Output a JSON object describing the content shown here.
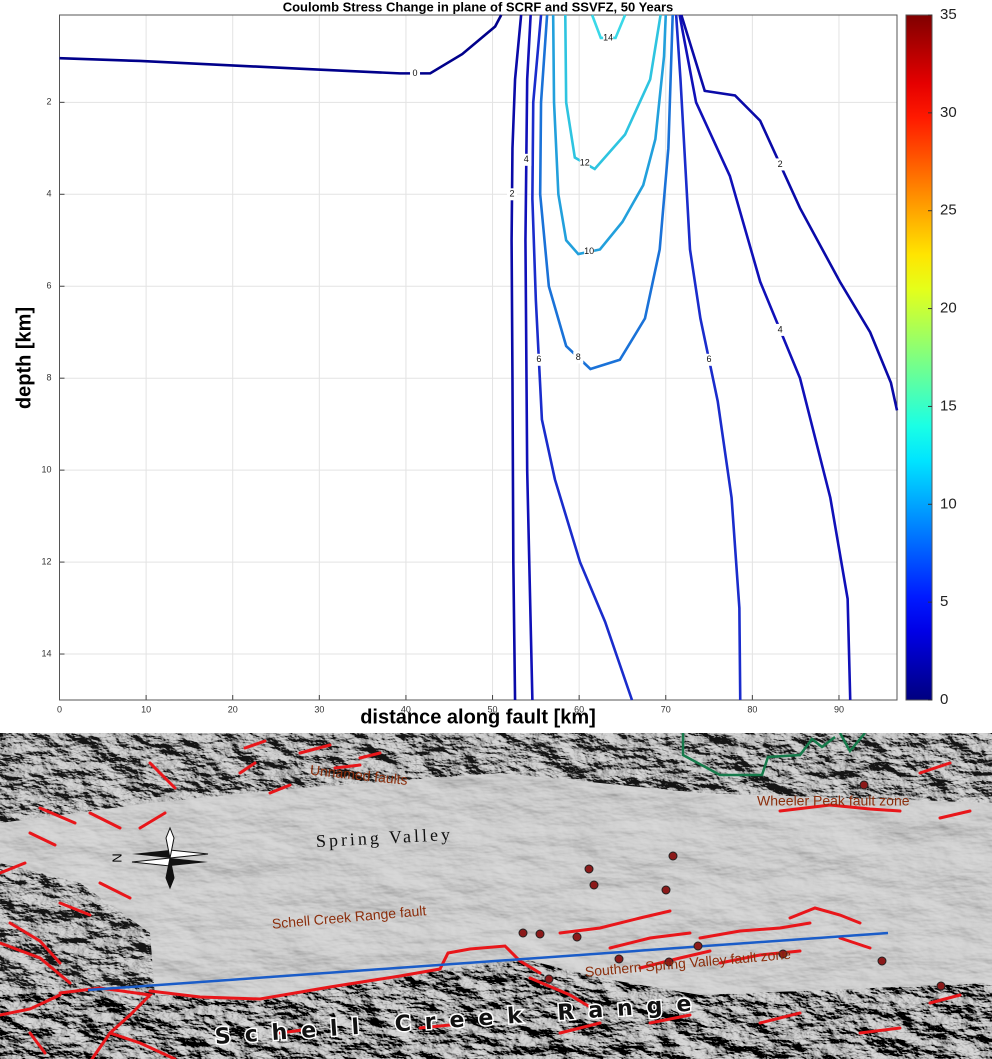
{
  "chart_data": {
    "type": "contour",
    "title": "Coulomb Stress Change in plane of SCRF and SSVFZ, 50 Years",
    "xlabel": "distance along fault [km]",
    "ylabel": "depth [km]",
    "xlim": [
      0,
      96.7
    ],
    "ylim": [
      0.1,
      15
    ],
    "y_inverted": true,
    "xticks": [
      0,
      10,
      20,
      30,
      40,
      50,
      60,
      70,
      80,
      90
    ],
    "yticks": [
      2,
      4,
      6,
      8,
      10,
      12,
      14
    ],
    "grid": true,
    "colorbar": {
      "clim": [
        0,
        35
      ],
      "ticks": [
        0,
        5,
        10,
        15,
        20,
        25,
        30,
        35
      ],
      "colormap": "jet"
    },
    "contours": [
      {
        "level": 0,
        "color": "#00008b",
        "x": [
          0,
          9.3,
          28,
          39.3,
          42.8,
          46.5,
          50.3,
          51
        ],
        "y": [
          1.04,
          1.1,
          1.27,
          1.37,
          1.37,
          0.95,
          0.35,
          0.1
        ]
      },
      {
        "level": 2,
        "color": "#0a0aa8",
        "x": [
          53.3,
          52.6,
          52.3,
          52.2,
          52.3,
          52.4,
          52.6
        ],
        "y": [
          0.1,
          1.5,
          3,
          5,
          8,
          12,
          15
        ]
      },
      {
        "level": 4,
        "color": "#1010b8",
        "x": [
          54.4,
          54,
          53.8,
          54,
          54.6
        ],
        "y": [
          0.1,
          1.5,
          5,
          10,
          15
        ]
      },
      {
        "level": 6,
        "color": "#1a2ccc",
        "x": [
          55.6,
          54.7,
          54.6,
          55,
          55.7,
          57.2,
          60.1,
          63,
          66.1
        ],
        "y": [
          0.1,
          2,
          4.1,
          6.3,
          8.9,
          10.2,
          12,
          13.3,
          15
        ]
      },
      {
        "level": 8,
        "color": "#1a72d8",
        "x": [
          56.3,
          55.6,
          55.5,
          56.5,
          58.5,
          61.3,
          64.7,
          67.6,
          69.3,
          70.3,
          70.8
        ],
        "y": [
          0.1,
          2,
          4,
          6,
          7.3,
          7.8,
          7.6,
          6.7,
          5.2,
          3,
          0.1
        ]
      },
      {
        "level": 10,
        "color": "#22a0dc",
        "x": [
          57,
          57.1,
          57.6,
          58.5,
          59.9,
          62.4,
          65,
          67.4,
          68.8,
          69.8,
          70
        ],
        "y": [
          0.1,
          2,
          4,
          5,
          5.3,
          5.2,
          4.6,
          3.8,
          2.8,
          1,
          0.1
        ]
      },
      {
        "level": 12,
        "color": "#2ec4e0",
        "x": [
          58.4,
          58.5,
          59.5,
          61.8,
          65.3,
          68.2,
          69.4
        ],
        "y": [
          0.1,
          2,
          3.2,
          3.45,
          2.7,
          1.5,
          0.1
        ]
      },
      {
        "level": 14,
        "color": "#3ad8e8",
        "x": [
          61.5,
          62.5,
          64.2,
          65.3
        ],
        "y": [
          0.1,
          0.6,
          0.6,
          0.1
        ]
      },
      {
        "level": 6,
        "color": "#1a2ccc",
        "x": [
          71.2,
          71.7,
          72.8,
          74,
          76,
          77.6,
          78.5,
          78.6
        ],
        "y": [
          0.1,
          1.5,
          5.2,
          6.7,
          8.5,
          10.6,
          13,
          15
        ]
      },
      {
        "level": 4,
        "color": "#1010b8",
        "x": [
          71.6,
          73.5,
          77.4,
          80.9,
          85.5,
          89,
          91,
          91.3
        ],
        "y": [
          0.1,
          2,
          3.6,
          5.9,
          8,
          10.6,
          12.8,
          15
        ]
      },
      {
        "level": 2,
        "color": "#0a0aa8",
        "x": [
          71.8,
          74.5,
          78,
          80.9,
          85.5,
          90.1,
          93.6,
          96,
          96.7
        ],
        "y": [
          0.1,
          1.75,
          1.85,
          2.4,
          4.3,
          5.9,
          7,
          8.1,
          8.7
        ]
      }
    ]
  },
  "map": {
    "labels": [
      "Unnamed faults",
      "Wheeler Peak fault zone",
      "Spring Valley",
      "Schell Creek Range fault",
      "Southern Spring Valley fault zone",
      "Schell Creek Range",
      "N"
    ]
  }
}
